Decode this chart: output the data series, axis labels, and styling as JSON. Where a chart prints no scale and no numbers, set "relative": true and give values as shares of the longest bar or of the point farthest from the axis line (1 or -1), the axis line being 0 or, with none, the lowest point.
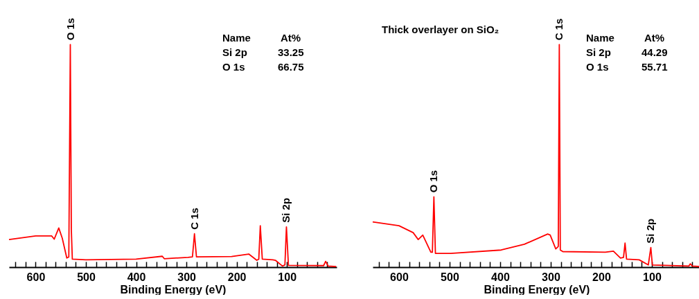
{
  "chart_data": [
    {
      "type": "line",
      "xlabel": "Binding Energy (eV)",
      "relative": true,
      "legend": false,
      "grid": false,
      "xlim": [
        653,
        1
      ],
      "xticks": [
        {
          "value": 640,
          "label": null
        },
        {
          "value": 620,
          "label": null
        },
        600,
        {
          "value": 580,
          "label": null
        },
        {
          "value": 560,
          "label": null
        },
        {
          "value": 540,
          "label": null
        },
        {
          "value": 520,
          "label": null
        },
        500,
        {
          "value": 480,
          "label": null
        },
        {
          "value": 460,
          "label": null
        },
        {
          "value": 440,
          "label": null
        },
        {
          "value": 420,
          "label": null
        },
        400,
        {
          "value": 380,
          "label": null
        },
        {
          "value": 360,
          "label": null
        },
        {
          "value": 340,
          "label": null
        },
        {
          "value": 320,
          "label": null
        },
        300,
        {
          "value": 280,
          "label": null
        },
        {
          "value": 260,
          "label": null
        },
        {
          "value": 240,
          "label": null
        },
        {
          "value": 220,
          "label": null
        },
        200,
        {
          "value": 180,
          "label": null
        },
        {
          "value": 160,
          "label": null
        },
        {
          "value": 140,
          "label": null
        },
        {
          "value": 120,
          "label": null
        },
        100,
        {
          "value": 80,
          "label": null
        },
        {
          "value": 60,
          "label": null
        },
        {
          "value": 40,
          "label": null
        },
        {
          "value": 20,
          "label": null
        }
      ],
      "series": [
        {
          "color": "#ff0000",
          "x": [
            653,
            600,
            568,
            563,
            554,
            547,
            538,
            534,
            531,
            529,
            527,
            500,
            400,
            348,
            344,
            297,
            288,
            284,
            280,
            210,
            176,
            160,
            156,
            153,
            149,
            128,
            123,
            109,
            104,
            101,
            97,
            27,
            23,
            18,
            2
          ],
          "values": [
            0.124,
            0.14,
            0.14,
            0.126,
            0.176,
            0.13,
            0.041,
            0.046,
            1.0,
            0.17,
            0.036,
            0.033,
            0.036,
            0.049,
            0.038,
            0.044,
            0.046,
            0.15,
            0.046,
            0.048,
            0.059,
            0.031,
            0.036,
            0.186,
            0.036,
            0.033,
            0.031,
            0.005,
            0.01,
            0.181,
            0.008,
            0.007,
            0.026,
            0.005,
            0.003
          ]
        }
      ],
      "annotations": [
        {
          "text": "O 1s",
          "x": 531,
          "y": 1.0
        },
        {
          "text": "C 1s",
          "x": 284,
          "y": 0.15
        },
        {
          "text": "Si 2p",
          "x": 101,
          "y": 0.181
        },
        "Name",
        "At%",
        "Si 2p",
        "33.25",
        "O 1s",
        "66.75"
      ]
    },
    {
      "type": "line",
      "title": "Thick overlayer on SiO₂",
      "xlabel": "Binding Energy (eV)",
      "relative": true,
      "legend": false,
      "grid": false,
      "xlim": [
        652,
        4
      ],
      "xticks": [
        {
          "value": 640,
          "label": null
        },
        {
          "value": 620,
          "label": null
        },
        600,
        {
          "value": 580,
          "label": null
        },
        {
          "value": 560,
          "label": null
        },
        {
          "value": 540,
          "label": null
        },
        {
          "value": 520,
          "label": null
        },
        500,
        {
          "value": 480,
          "label": null
        },
        {
          "value": 460,
          "label": null
        },
        {
          "value": 440,
          "label": null
        },
        {
          "value": 420,
          "label": null
        },
        400,
        {
          "value": 380,
          "label": null
        },
        {
          "value": 360,
          "label": null
        },
        {
          "value": 340,
          "label": null
        },
        {
          "value": 320,
          "label": null
        },
        300,
        {
          "value": 280,
          "label": null
        },
        {
          "value": 260,
          "label": null
        },
        {
          "value": 240,
          "label": null
        },
        {
          "value": 220,
          "label": null
        },
        200,
        {
          "value": 180,
          "label": null
        },
        {
          "value": 160,
          "label": null
        },
        {
          "value": 140,
          "label": null
        },
        {
          "value": 120,
          "label": null
        },
        100,
        {
          "value": 80,
          "label": null
        },
        {
          "value": 60,
          "label": null
        },
        {
          "value": 40,
          "label": null
        },
        {
          "value": 20,
          "label": null
        }
      ],
      "series": [
        {
          "color": "#ff0000",
          "x": [
            652,
            600,
            572,
            562,
            553,
            537,
            534,
            531,
            528,
            498,
            398,
            352,
            306,
            301,
            290,
            285,
            283,
            281,
            276,
            192,
            176,
            162,
            156,
            153,
            150,
            125,
            107,
            102,
            99,
            27,
            24,
            20,
            4
          ],
          "values": [
            0.203,
            0.186,
            0.155,
            0.124,
            0.144,
            0.067,
            0.067,
            0.316,
            0.062,
            0.062,
            0.077,
            0.103,
            0.149,
            0.144,
            0.082,
            0.093,
            1.0,
            0.077,
            0.07,
            0.067,
            0.072,
            0.041,
            0.044,
            0.108,
            0.036,
            0.033,
            0.01,
            0.088,
            0.01,
            0.005,
            0.015,
            0.005,
            0.003
          ]
        }
      ],
      "annotations": [
        {
          "text": "O 1s",
          "x": 531,
          "y": 0.316
        },
        {
          "text": "C 1s",
          "x": 283,
          "y": 1.0
        },
        {
          "text": "Si 2p",
          "x": 102,
          "y": 0.088
        },
        "Name",
        "At%",
        "Si 2p",
        "44.29",
        "O 1s",
        "55.71"
      ]
    }
  ]
}
